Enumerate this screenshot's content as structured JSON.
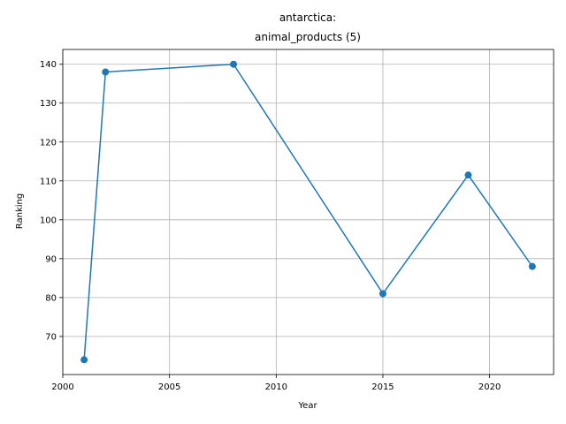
{
  "chart_data": {
    "type": "line",
    "title_line1": "antarctica:",
    "title_line2": "animal_products (5)",
    "xlabel": "Year",
    "ylabel": "Ranking",
    "xlim": [
      2000,
      2023
    ],
    "ylim": [
      60.2,
      143.8
    ],
    "xticks": [
      2000,
      2005,
      2010,
      2015,
      2020
    ],
    "yticks": [
      70,
      80,
      90,
      100,
      110,
      120,
      130,
      140
    ],
    "grid": true,
    "series": [
      {
        "x": [
          2001,
          2002,
          2008,
          2015,
          2019,
          2022
        ],
        "y": [
          64,
          138,
          140,
          81,
          111.5,
          88
        ],
        "color": "#1f77b4",
        "marker": "circle"
      }
    ]
  }
}
